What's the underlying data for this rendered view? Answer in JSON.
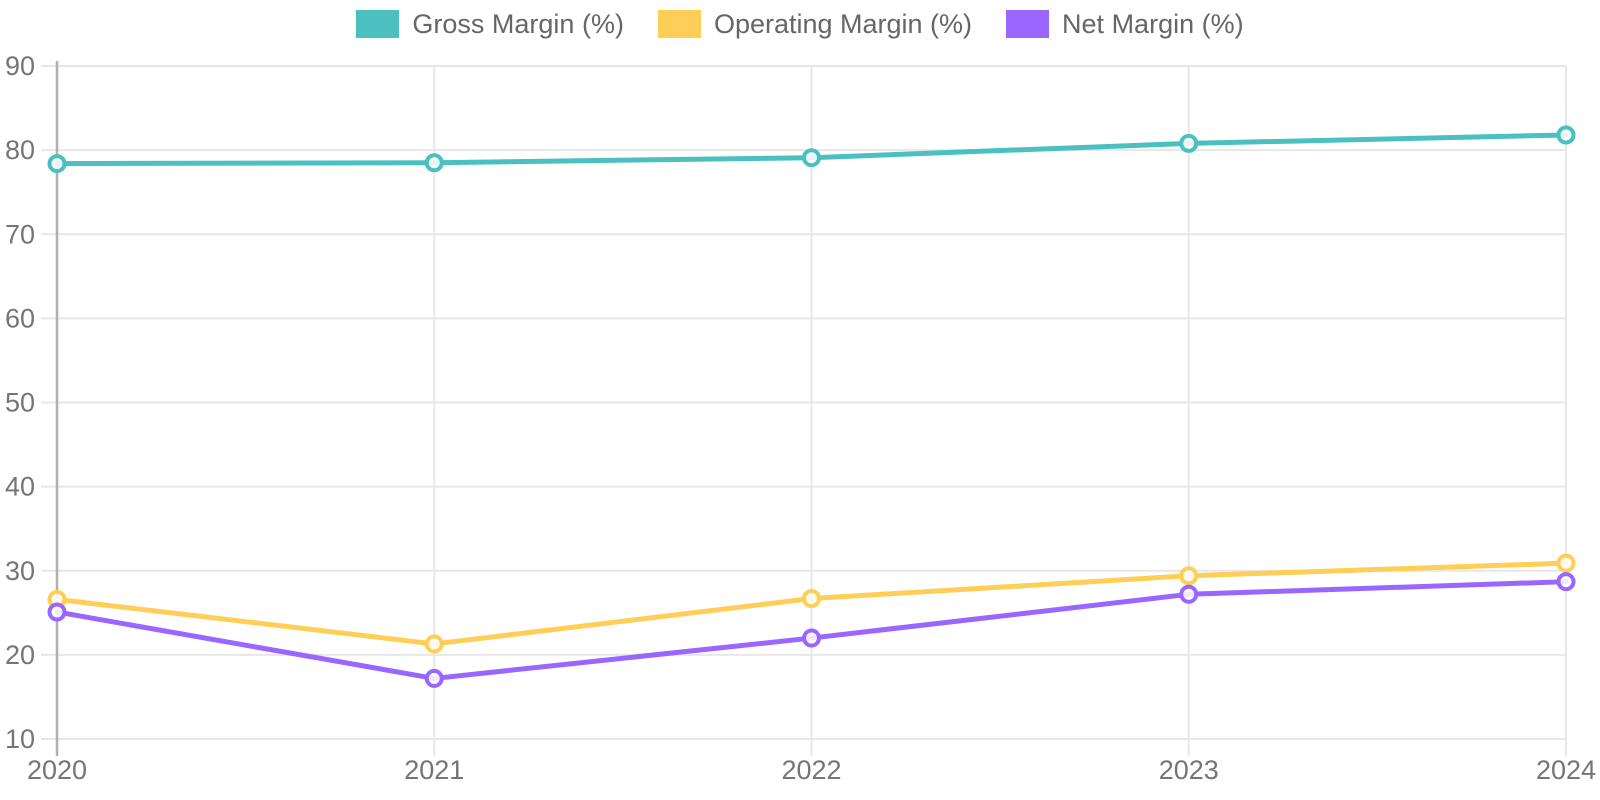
{
  "legend": {
    "items": [
      {
        "label": "Gross Margin (%)",
        "color": "#4BC0C0"
      },
      {
        "label": "Operating Margin (%)",
        "color": "#FFCE56"
      },
      {
        "label": "Net Margin (%)",
        "color": "#9966FF"
      }
    ]
  },
  "chart_data": {
    "type": "line",
    "title": "",
    "xlabel": "",
    "ylabel": "",
    "categories": [
      "2020",
      "2021",
      "2022",
      "2023",
      "2024"
    ],
    "series": [
      {
        "name": "Gross Margin (%)",
        "color": "#4BC0C0",
        "values": [
          78.4,
          78.5,
          79.1,
          80.8,
          81.8
        ]
      },
      {
        "name": "Operating Margin (%)",
        "color": "#FFCE56",
        "values": [
          26.6,
          21.3,
          26.7,
          29.4,
          30.9
        ]
      },
      {
        "name": "Net Margin (%)",
        "color": "#9966FF",
        "values": [
          25.1,
          17.2,
          22.0,
          27.2,
          28.7
        ]
      }
    ],
    "ylim": [
      10,
      90
    ],
    "yticks": [
      10,
      20,
      30,
      40,
      50,
      60,
      70,
      80,
      90
    ],
    "grid": true,
    "legend_position": "top",
    "marker": "circle-open",
    "grid_color": "#e7e7e7",
    "axis_color": "#b0b0b0",
    "tick_label_color": "#757575",
    "legend_text_color": "#666666",
    "background_color": "#ffffff"
  }
}
